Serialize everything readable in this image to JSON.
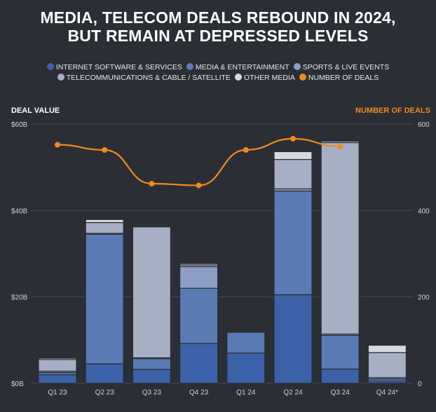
{
  "title_line1": "MEDIA, TELECOM DEALS REBOUND IN 2024,",
  "title_line2": "BUT REMAIN AT DEPRESSED LEVELS",
  "legend": [
    {
      "label": "INTERNET SOFTWARE & SERVICES",
      "color": "#3b62a8",
      "row": 1
    },
    {
      "label": "MEDIA & ENTERTAINMENT",
      "color": "#5b7bb5",
      "row": 1
    },
    {
      "label": "SPORTS & LIVE EVENTS",
      "color": "#8c9dc6",
      "row": 1
    },
    {
      "label": "TELECOMMUNICATIONS & CABLE / SATELLITE",
      "color": "#a6afc4",
      "row": 2
    },
    {
      "label": "OTHER MEDIA",
      "color": "#d7d9dc",
      "row": 2
    },
    {
      "label": "NUMBER OF DEALS",
      "color": "#f08a1c",
      "row": 2
    }
  ],
  "chart_data": {
    "type": "bar",
    "stacked": true,
    "categories": [
      "Q1 23",
      "Q2 23",
      "Q3 23",
      "Q4 23",
      "Q1 24",
      "Q2 24",
      "Q3 24",
      "Q4 24*"
    ],
    "ylabel": "DEAL VALUE",
    "ylabel_right": "NUMBER OF DEALS",
    "ylim": [
      0,
      60
    ],
    "ylim_right": [
      0,
      600
    ],
    "yticks": [
      "$0B",
      "$20B",
      "$40B",
      "$60B"
    ],
    "yticks_right": [
      "0",
      "200",
      "400",
      "600"
    ],
    "series": [
      {
        "name": "INTERNET SOFTWARE & SERVICES",
        "values": [
          2.0,
          4.5,
          3.2,
          9.2,
          7.0,
          20.5,
          3.3,
          0.5
        ]
      },
      {
        "name": "MEDIA & ENTERTAINMENT",
        "values": [
          0.5,
          30.0,
          2.5,
          12.8,
          4.8,
          24.0,
          7.8,
          0.5
        ]
      },
      {
        "name": "SPORTS & LIVE EVENTS",
        "values": [
          0.3,
          0.2,
          0.2,
          5.0,
          0.2,
          0.5,
          0.3,
          0.3
        ]
      },
      {
        "name": "TELECOMMUNICATIONS & CABLE / SATELLITE",
        "values": [
          2.7,
          2.5,
          30.3,
          0.4,
          0.1,
          6.8,
          44.3,
          5.8
        ]
      },
      {
        "name": "OTHER MEDIA",
        "values": [
          0.3,
          0.7,
          0.1,
          0.3,
          0.1,
          1.8,
          0.3,
          1.7
        ]
      }
    ],
    "line_series": {
      "name": "NUMBER OF DEALS",
      "axis": "right",
      "values": [
        552,
        540,
        462,
        458,
        540,
        566,
        548
      ]
    }
  }
}
